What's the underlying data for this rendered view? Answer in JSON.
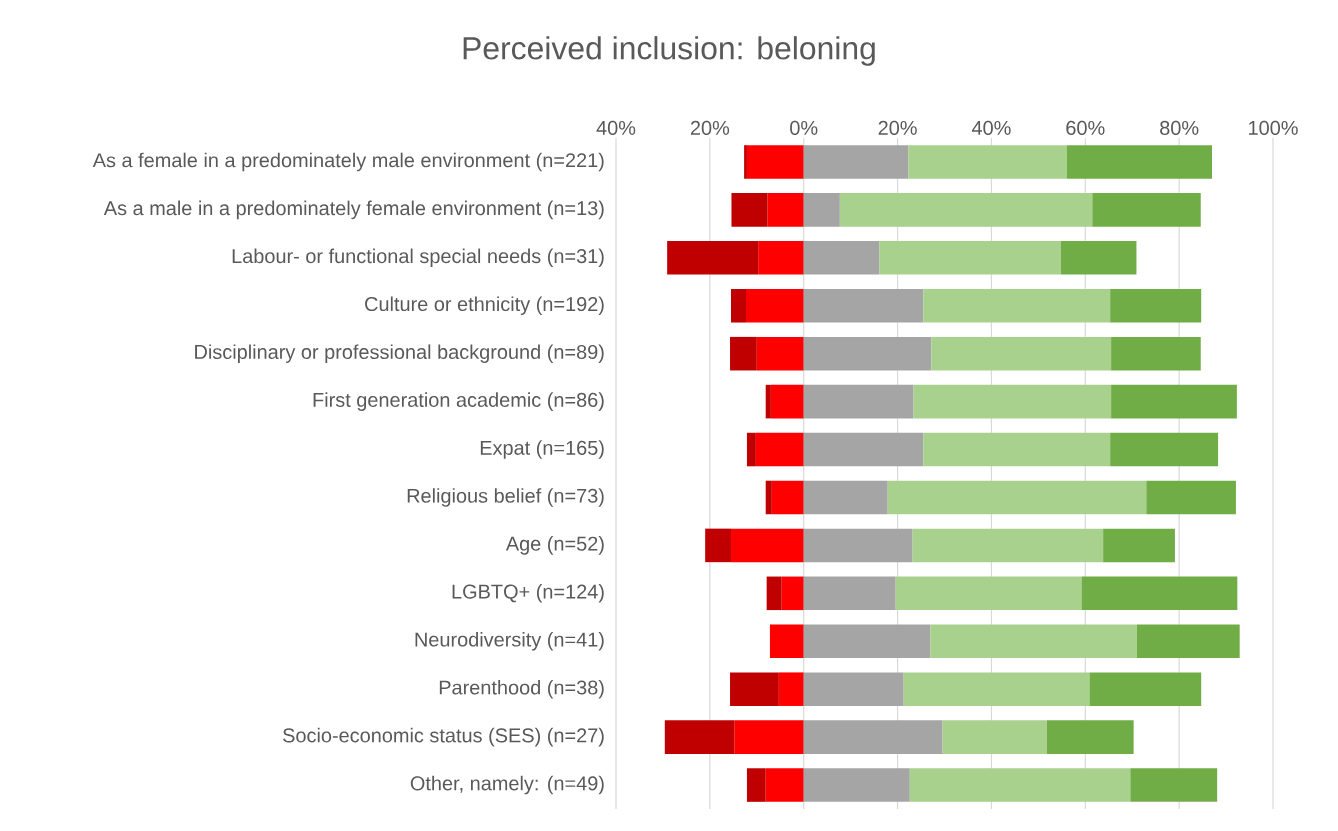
{
  "chart_data": {
    "type": "bar",
    "orientation": "horizontal",
    "stacked": true,
    "title": "Perceived inclusion: beloning",
    "categories": [
      "As a female in a predominately male environment (n=221)",
      "As a male in a predominately female environment (n=13)",
      "Labour- or functional special needs (n=31)",
      "Culture or ethnicity (n=192)",
      "Disciplinary or professional background (n=89)",
      "First generation academic (n=86)",
      "Expat (n=165)",
      "Religious belief (n=73)",
      "Age (n=52)",
      "LGBTQ+ (n=124)",
      "Neurodiversity (n=41)",
      "Parenthood (n=38)",
      "Socio-economic status (SES) (n=27)",
      "Other, namely: (n=49)"
    ],
    "series": [
      {
        "color": "#ff0000",
        "values": [
          -12.1,
          -7.7,
          -9.7,
          -12.3,
          -10.0,
          -7.0,
          -10.2,
          -6.8,
          -15.5,
          -4.7,
          -7.2,
          -5.3,
          -14.8,
          -8.1
        ]
      },
      {
        "color": "#c00000",
        "values": [
          -0.6,
          -7.7,
          -19.4,
          -3.2,
          -5.7,
          -1.1,
          -1.9,
          -1.3,
          -5.5,
          -3.2,
          0,
          -10.4,
          -14.8,
          -4.0
        ]
      },
      {
        "color": "#a5a5a5",
        "values": [
          22.3,
          7.7,
          16.1,
          25.5,
          27.2,
          23.4,
          25.5,
          17.9,
          23.2,
          19.6,
          27.0,
          21.3,
          29.6,
          22.6
        ]
      },
      {
        "color": "#a9d18e",
        "values": [
          33.8,
          53.8,
          38.7,
          39.8,
          38.3,
          42.1,
          39.8,
          55.1,
          40.6,
          39.6,
          44.0,
          39.6,
          22.2,
          47.0
        ]
      },
      {
        "color": "#70ad47",
        "values": [
          30.9,
          23.1,
          16.1,
          19.4,
          19.1,
          26.8,
          23.0,
          19.1,
          15.3,
          33.2,
          21.9,
          23.8,
          18.5,
          18.5
        ]
      }
    ],
    "xlim": [
      -40,
      100
    ],
    "xticks": [
      {
        "value": -40,
        "label": "40%"
      },
      {
        "value": -20,
        "label": "20%"
      },
      {
        "value": 0,
        "label": "0%"
      },
      {
        "value": 20,
        "label": "20%"
      },
      {
        "value": 40,
        "label": "40%"
      },
      {
        "value": 60,
        "label": "60%"
      },
      {
        "value": 80,
        "label": "80%"
      },
      {
        "value": 100,
        "label": "100%"
      }
    ],
    "grid": "x"
  }
}
